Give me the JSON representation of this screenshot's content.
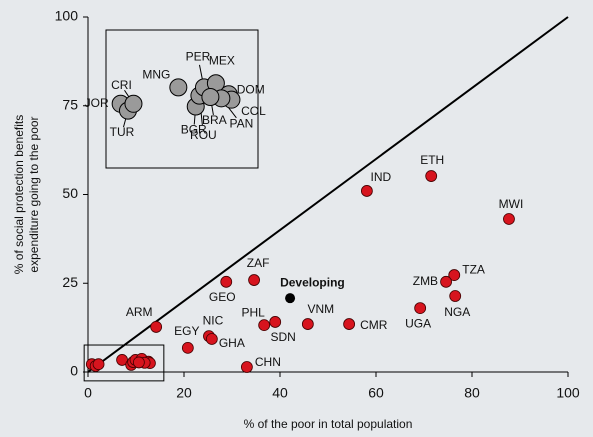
{
  "chart_data": {
    "type": "scatter",
    "xlabel": "% of the poor in total population",
    "ylabel": [
      "% of social protection benefits",
      "expenditure going to the poor"
    ],
    "xlim": [
      0,
      100
    ],
    "ylim": [
      0,
      100
    ],
    "xticks": [
      0,
      20,
      40,
      60,
      80,
      100
    ],
    "yticks": [
      0,
      25,
      50,
      75,
      100
    ],
    "color": "#d7141e",
    "inset_color": "#9a9a9a",
    "points": [
      {
        "label": "IND",
        "x": 58.1,
        "y": 51.0
      },
      {
        "label": "ETH",
        "x": 71.5,
        "y": 55.2
      },
      {
        "label": "MWI",
        "x": 87.7,
        "y": 43.1
      },
      {
        "label": "TZA",
        "x": 76.3,
        "y": 27.3
      },
      {
        "label": "ZMB",
        "x": 74.6,
        "y": 25.4
      },
      {
        "label": "NGA",
        "x": 76.5,
        "y": 21.4
      },
      {
        "label": "UGA",
        "x": 69.2,
        "y": 18.0
      },
      {
        "label": "CMR",
        "x": 54.4,
        "y": 13.5
      },
      {
        "label": "VNM",
        "x": 45.8,
        "y": 13.5
      },
      {
        "label": "SDN",
        "x": 39.0,
        "y": 14.1
      },
      {
        "label": "PHL",
        "x": 36.7,
        "y": 13.2
      },
      {
        "label": "ZAF",
        "x": 34.6,
        "y": 25.9
      },
      {
        "label": "GEO",
        "x": 28.8,
        "y": 25.4
      },
      {
        "label": "CHN",
        "x": 33.1,
        "y": 1.4
      },
      {
        "label": "EGY",
        "x": 20.8,
        "y": 6.8
      },
      {
        "label": "NIC",
        "x": 25.2,
        "y": 10.1
      },
      {
        "label": "GHA",
        "x": 25.8,
        "y": 9.3
      },
      {
        "label": "ARM",
        "x": 14.2,
        "y": 12.7
      }
    ],
    "highlight": {
      "label": "Developing",
      "x": 42.1,
      "y": 20.8,
      "color": "#000000"
    },
    "inset_points": [
      {
        "label": "JOR",
        "x": 0.8,
        "y": 2.2
      },
      {
        "label": "TUR",
        "x": 1.6,
        "y": 1.7
      },
      {
        "label": "CRI",
        "x": 2.2,
        "y": 2.2
      },
      {
        "label": "MNG",
        "x": 7.1,
        "y": 3.4
      },
      {
        "label": "BGR",
        "x": 9.0,
        "y": 2.0
      },
      {
        "label": "ROU",
        "x": 9.4,
        "y": 2.8
      },
      {
        "label": "PER",
        "x": 9.9,
        "y": 3.4
      },
      {
        "label": "MEX",
        "x": 11.2,
        "y": 3.7
      },
      {
        "label": "DOM",
        "x": 12.6,
        "y": 2.9
      },
      {
        "label": "COL",
        "x": 12.9,
        "y": 2.5
      },
      {
        "label": "PAN",
        "x": 11.8,
        "y": 2.6
      },
      {
        "label": "BRA",
        "x": 10.6,
        "y": 2.7
      }
    ]
  }
}
